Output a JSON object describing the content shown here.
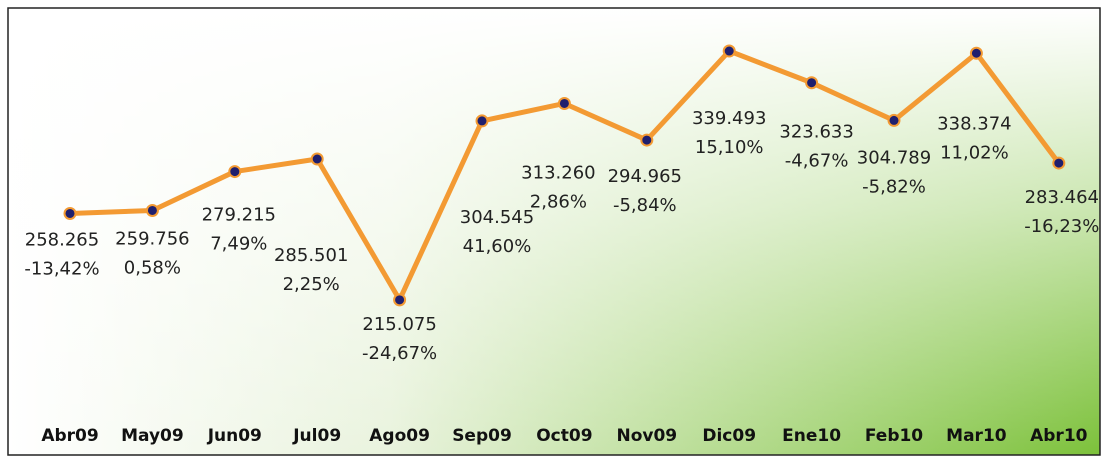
{
  "chart_data": {
    "type": "line",
    "categories": [
      "Abr09",
      "May09",
      "Jun09",
      "Jul09",
      "Ago09",
      "Sep09",
      "Oct09",
      "Nov09",
      "Dic09",
      "Ene10",
      "Feb10",
      "Mar10",
      "Abr10"
    ],
    "series": [
      {
        "color": "#f39a33",
        "values": [
          258265,
          259756,
          279215,
          285501,
          215075,
          304545,
          313260,
          294965,
          339493,
          323633,
          304789,
          338374,
          283464
        ],
        "value_labels": [
          "258.265",
          "259.756",
          "279.215",
          "285.501",
          "215.075",
          "304.545",
          "313.260",
          "294.965",
          "339.493",
          "323.633",
          "304.789",
          "338.374",
          "283.464"
        ],
        "percent_change": [
          -13.42,
          0.58,
          7.49,
          2.25,
          -24.67,
          41.6,
          2.86,
          -5.84,
          15.1,
          -4.67,
          -5.82,
          11.02,
          -16.23
        ],
        "percent_change_labels": [
          "-13,42%",
          "0,58%",
          "7,49%",
          "2,25%",
          "-24,67%",
          "41,60%",
          "2,86%",
          "-5,84%",
          "15,10%",
          "-4,67%",
          "-5,82%",
          "11,02%",
          "-16,23%"
        ]
      }
    ],
    "marker_color": "#1f1f6e",
    "ylim": [
      170000,
      350000
    ]
  }
}
